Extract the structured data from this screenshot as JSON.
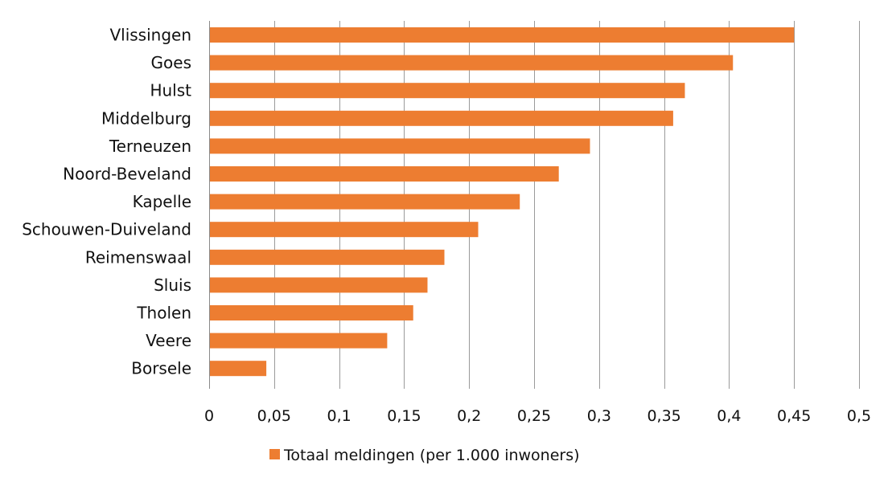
{
  "chart_data": {
    "type": "bar",
    "orientation": "horizontal",
    "categories": [
      "Vlissingen",
      "Goes",
      "Hulst",
      "Middelburg",
      "Terneuzen",
      "Noord-Beveland",
      "Kapelle",
      "Schouwen-Duiveland",
      "Reimenswaal",
      "Sluis",
      "Tholen",
      "Veere",
      "Borsele"
    ],
    "series": [
      {
        "name": "Totaal meldingen (per 1.000 inwoners)",
        "values": [
          0.45,
          0.403,
          0.366,
          0.357,
          0.293,
          0.269,
          0.239,
          0.207,
          0.181,
          0.168,
          0.157,
          0.137,
          0.044
        ],
        "color": "#ed7d31"
      }
    ],
    "xlim": [
      0,
      0.5
    ],
    "xticks": [
      0,
      0.05,
      0.1,
      0.15,
      0.2,
      0.25,
      0.3,
      0.35,
      0.4,
      0.45,
      0.5
    ],
    "xtick_labels": [
      "0",
      "0,05",
      "0,1",
      "0,15",
      "0,2",
      "0,25",
      "0,3",
      "0,35",
      "0,4",
      "0,45",
      "0,5"
    ],
    "grid": true,
    "legend_position": "bottom",
    "title": "",
    "xlabel": "",
    "ylabel": ""
  },
  "legend": {
    "label": "Totaal meldingen (per 1.000 inwoners)"
  }
}
